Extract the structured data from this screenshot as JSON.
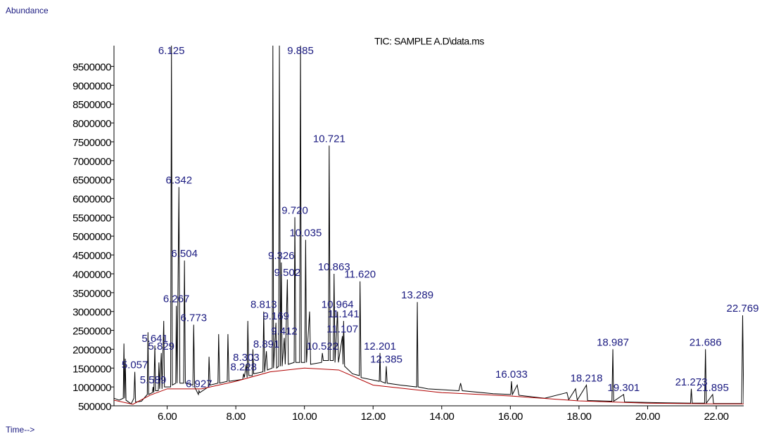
{
  "chart_data": {
    "type": "line",
    "title": "TIC: SAMPLE A.D\\data.ms",
    "y_label": "Abundance",
    "x_label": "Time-->",
    "xlim": [
      4.45,
      22.8
    ],
    "ylim": [
      500000,
      10050000
    ],
    "xticks": [
      {
        "value": 6,
        "label": "6.00"
      },
      {
        "value": 8,
        "label": "8.00"
      },
      {
        "value": 10,
        "label": "10.00"
      },
      {
        "value": 12,
        "label": "12.00"
      },
      {
        "value": 14,
        "label": "14.00"
      },
      {
        "value": 16,
        "label": "16.00"
      },
      {
        "value": 18,
        "label": "18.00"
      },
      {
        "value": 20,
        "label": "20.00"
      },
      {
        "value": 22,
        "label": "22.00"
      }
    ],
    "yticks": [
      500000,
      1000000,
      1500000,
      2000000,
      2500000,
      3000000,
      3500000,
      4000000,
      4500000,
      5000000,
      5500000,
      6000000,
      6500000,
      7000000,
      7500000,
      8000000,
      8500000,
      9000000,
      9500000
    ],
    "grid": false,
    "series": [
      {
        "color": "#000000",
        "x": [
          4.45,
          4.6,
          4.72,
          4.74,
          4.76,
          4.78,
          4.8,
          4.95,
          5.03,
          5.057,
          5.08,
          5.25,
          5.42,
          5.441,
          5.46,
          5.57,
          5.589,
          5.61,
          5.641,
          5.66,
          5.74,
          5.76,
          5.78,
          5.829,
          5.85,
          5.9,
          5.92,
          6.1,
          6.125,
          6.15,
          6.25,
          6.267,
          6.29,
          6.342,
          6.37,
          6.48,
          6.504,
          6.53,
          6.75,
          6.773,
          6.8,
          6.91,
          6.927,
          6.95,
          7.2,
          7.22,
          7.25,
          7.48,
          7.5,
          7.53,
          7.75,
          7.77,
          7.8,
          8.2,
          8.228,
          8.25,
          8.303,
          8.33,
          8.35,
          8.38,
          8.48,
          8.498,
          8.52,
          8.79,
          8.813,
          8.84,
          8.891,
          8.92,
          9.06,
          9.08,
          9.1,
          9.169,
          9.19,
          9.25,
          9.27,
          9.3,
          9.326,
          9.35,
          9.412,
          9.44,
          9.502,
          9.53,
          9.7,
          9.72,
          9.75,
          9.86,
          9.885,
          9.91,
          10.01,
          10.035,
          10.06,
          10.15,
          10.18,
          10.5,
          10.522,
          10.55,
          10.7,
          10.721,
          10.75,
          10.84,
          10.863,
          10.89,
          10.964,
          10.99,
          11.107,
          11.125,
          11.141,
          11.17,
          11.4,
          11.6,
          11.62,
          11.65,
          12.18,
          12.201,
          12.22,
          12.36,
          12.385,
          12.41,
          12.8,
          13.27,
          13.289,
          13.31,
          13.6,
          14.5,
          14.55,
          14.6,
          15.5,
          16.01,
          16.033,
          16.06,
          16.2,
          16.25,
          17.0,
          17.65,
          17.7,
          17.9,
          17.95,
          18.218,
          18.25,
          18.96,
          18.987,
          19.01,
          19.301,
          19.33,
          20.5,
          21.25,
          21.273,
          21.3,
          21.66,
          21.686,
          21.71,
          21.895,
          21.92,
          22.74,
          22.769,
          22.8
        ],
        "values": [
          700000,
          650000,
          700000,
          2150000,
          700000,
          1750000,
          650000,
          550000,
          700000,
          1400000,
          600000,
          620000,
          800000,
          2450000,
          800000,
          850000,
          1000000,
          850000,
          2100000,
          900000,
          900000,
          1650000,
          950000,
          1900000,
          950000,
          2750000,
          1000000,
          1000000,
          10050000,
          1050000,
          1100000,
          3150000,
          1100000,
          6300000,
          1100000,
          1100000,
          4350000,
          1100000,
          1050000,
          2650000,
          1000000,
          800000,
          900000,
          850000,
          1000000,
          1800000,
          1050000,
          1100000,
          2400000,
          1100000,
          1150000,
          2400000,
          1150000,
          1200000,
          1350000,
          1250000,
          1600000,
          1250000,
          2750000,
          1300000,
          1300000,
          2000000,
          1350000,
          1400000,
          3000000,
          1400000,
          1950000,
          1450000,
          1500000,
          10050000,
          1500000,
          2700000,
          1500000,
          1550000,
          10050000,
          1550000,
          4300000,
          1550000,
          2300000,
          1600000,
          3850000,
          1600000,
          1650000,
          5500000,
          1650000,
          1650000,
          10050000,
          1650000,
          1650000,
          4900000,
          1650000,
          3000000,
          1600000,
          1650000,
          1900000,
          1700000,
          1700000,
          7400000,
          1700000,
          1700000,
          4000000,
          1650000,
          3000000,
          1650000,
          2350000,
          1600000,
          2750000,
          1550000,
          1350000,
          1300000,
          3800000,
          1250000,
          1150000,
          1900000,
          1150000,
          1100000,
          1550000,
          1100000,
          1050000,
          1000000,
          3250000,
          1000000,
          950000,
          900000,
          1100000,
          900000,
          820000,
          800000,
          1150000,
          800000,
          1050000,
          780000,
          700000,
          850000,
          660000,
          950000,
          650000,
          1050000,
          640000,
          620000,
          2000000,
          620000,
          800000,
          600000,
          580000,
          570000,
          950000,
          570000,
          570000,
          2000000,
          570000,
          800000,
          560000,
          560000,
          2900000,
          560000
        ]
      },
      {
        "color": "#b00000",
        "x": [
          4.45,
          5.0,
          5.5,
          6.0,
          7.0,
          8.0,
          9.0,
          10.0,
          11.0,
          12.0,
          14.0,
          16.0,
          18.0,
          20.0,
          22.0,
          22.8
        ],
        "values": [
          650000,
          540000,
          780000,
          950000,
          950000,
          1150000,
          1400000,
          1500000,
          1450000,
          1050000,
          850000,
          760000,
          630000,
          570000,
          550000,
          550000
        ]
      }
    ],
    "peaks": {
      "x": [
        5.057,
        5.589,
        5.641,
        5.829,
        6.125,
        6.267,
        6.342,
        6.504,
        6.773,
        6.927,
        8.228,
        8.303,
        8.813,
        8.891,
        9.169,
        9.326,
        9.412,
        9.502,
        9.72,
        9.885,
        10.035,
        10.522,
        10.721,
        10.863,
        10.964,
        11.107,
        11.141,
        11.62,
        12.201,
        12.385,
        13.289,
        16.033,
        18.218,
        18.987,
        19.301,
        21.273,
        21.686,
        21.895,
        22.769
      ],
      "values": [
        1400000,
        1000000,
        2100000,
        1900000,
        10050000,
        3150000,
        6300000,
        4350000,
        2650000,
        900000,
        1350000,
        1600000,
        3000000,
        1950000,
        2700000,
        4300000,
        2300000,
        3850000,
        5500000,
        10050000,
        4900000,
        1900000,
        7400000,
        4000000,
        3000000,
        2350000,
        2750000,
        3800000,
        1900000,
        1550000,
        3250000,
        1150000,
        1050000,
        2000000,
        800000,
        950000,
        2000000,
        800000,
        2900000
      ],
      "labels": [
        "5.057",
        "5.589",
        "5.641",
        "5.829",
        "6.125",
        "6.267",
        "6.342",
        "6.504",
        "6.773",
        "6.927",
        "8.228",
        "8.303",
        "8.813",
        "8.891",
        "9.169",
        "9.326",
        "9.412",
        "9.502",
        "9.720",
        "9.885",
        "10.035",
        "10.522",
        "10.721",
        "10.863",
        "10.964",
        "11.107",
        "11.141",
        "11.620",
        "12.201",
        "12.385",
        "13.289",
        "16.033",
        "18.218",
        "18.987",
        "19.301",
        "21.273",
        "21.686",
        "21.895",
        "22.769"
      ]
    }
  }
}
